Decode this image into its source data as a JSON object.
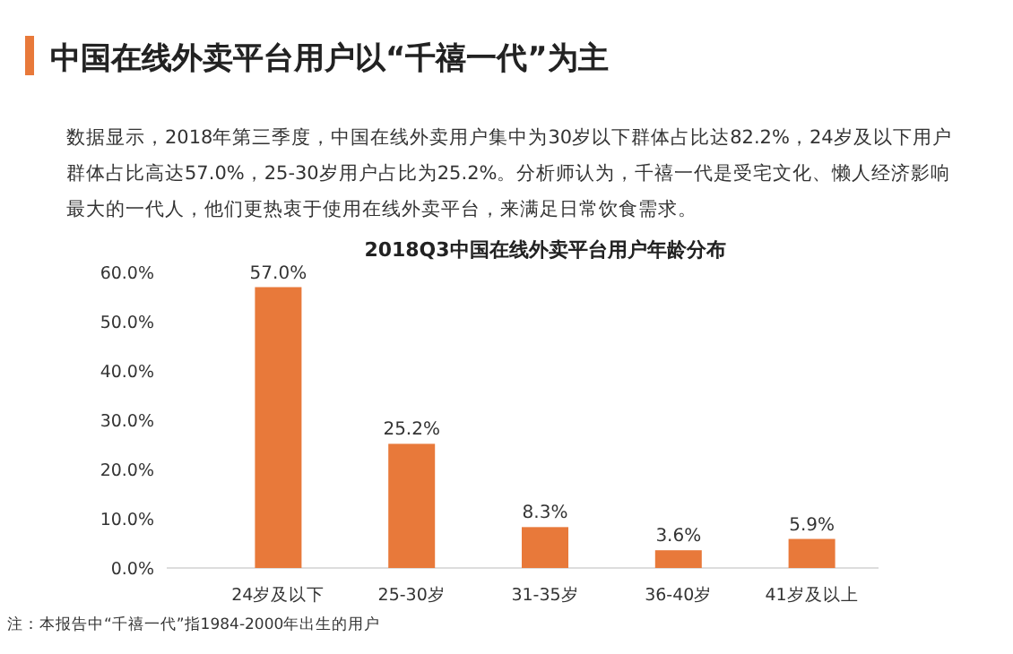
{
  "chart_data": {
    "type": "bar",
    "title": "中国在线外卖平台用户以“千禧一代”为主",
    "subtitle": "数据显示，2018年第三季度，中国在线外卖用户集中为30岁以下群体占比达82.2%，24岁及以下用户群体占比高达57.0%，25-30岁用户占比为25.2%。分析师认为，千禧一代是受宅文化、懒人经济影响最大的一代人，他们更热衷于使用在线外卖平台，来满足日常饮食需求。",
    "annotations": [
      "2018Q3中国在线外卖平台用户年龄分布",
      "注：本报告中“千禧一代”指1984-2000年出生的用户"
    ],
    "categories": [
      "24岁及以下",
      "25-30岁",
      "31-35岁",
      "36-40岁",
      "41岁及以上"
    ],
    "values": [
      57.0,
      25.2,
      8.3,
      3.6,
      5.9
    ],
    "value_labels": [
      "57.0%",
      "25.2%",
      "8.3%",
      "3.6%",
      "5.9%"
    ],
    "color": "#e8793a",
    "ylim": [
      0,
      60
    ],
    "yticks": [
      {
        "value": 0,
        "label": "0.0%"
      },
      {
        "value": 10,
        "label": "10.0%"
      },
      {
        "value": 20,
        "label": "20.0%"
      },
      {
        "value": 30,
        "label": "30.0%"
      },
      {
        "value": 40,
        "label": "40.0%"
      },
      {
        "value": 50,
        "label": "50.0%"
      },
      {
        "value": 60,
        "label": "60.0%"
      }
    ],
    "grid": false
  }
}
